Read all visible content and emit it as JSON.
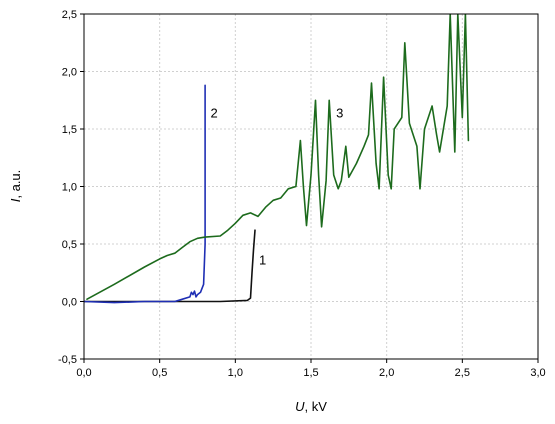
{
  "chart_data": {
    "type": "line",
    "xlabel": {
      "symbol": "U",
      "unit": ", kV"
    },
    "ylabel": {
      "symbol": "I",
      "unit": ", a.u."
    },
    "xlim": [
      0.0,
      3.0
    ],
    "ylim": [
      -0.5,
      2.5
    ],
    "xticks": [
      "0,0",
      "0,5",
      "1,0",
      "1,5",
      "2,0",
      "2,5",
      "3,0"
    ],
    "yticks": [
      "-0,5",
      "0,0",
      "0,5",
      "1,0",
      "1,5",
      "2,0",
      "2,5"
    ],
    "grid": true,
    "colors": {
      "curve_1": "#111111",
      "curve_2": "#1f2fb4",
      "curve_3": "#1d6b1d",
      "grid": "#d0d0d0"
    },
    "annotations": [
      {
        "text": "1",
        "x": 1.18,
        "y": 0.32
      },
      {
        "text": "2",
        "x": 0.86,
        "y": 1.6
      },
      {
        "text": "3",
        "x": 1.69,
        "y": 1.6
      }
    ],
    "series": [
      {
        "color": "#111111",
        "points": [
          [
            0.0,
            0.0
          ],
          [
            0.3,
            0.0
          ],
          [
            0.6,
            0.0
          ],
          [
            0.9,
            0.0
          ],
          [
            1.08,
            0.01
          ],
          [
            1.1,
            0.03
          ],
          [
            1.11,
            0.25
          ],
          [
            1.12,
            0.45
          ],
          [
            1.13,
            0.62
          ]
        ]
      },
      {
        "color": "#1f2fb4",
        "points": [
          [
            0.0,
            0.0
          ],
          [
            0.2,
            -0.01
          ],
          [
            0.4,
            0.0
          ],
          [
            0.6,
            0.0
          ],
          [
            0.65,
            0.02
          ],
          [
            0.7,
            0.04
          ],
          [
            0.71,
            0.08
          ],
          [
            0.72,
            0.06
          ],
          [
            0.73,
            0.09
          ],
          [
            0.74,
            0.04
          ],
          [
            0.75,
            0.06
          ],
          [
            0.77,
            0.08
          ],
          [
            0.79,
            0.15
          ],
          [
            0.8,
            0.5
          ],
          [
            0.8,
            1.0
          ],
          [
            0.8,
            1.88
          ]
        ]
      },
      {
        "color": "#1d6b1d",
        "points": [
          [
            0.02,
            0.02
          ],
          [
            0.2,
            0.15
          ],
          [
            0.4,
            0.3
          ],
          [
            0.5,
            0.37
          ],
          [
            0.55,
            0.4
          ],
          [
            0.6,
            0.42
          ],
          [
            0.65,
            0.47
          ],
          [
            0.7,
            0.52
          ],
          [
            0.75,
            0.55
          ],
          [
            0.8,
            0.56
          ],
          [
            0.9,
            0.57
          ],
          [
            0.95,
            0.62
          ],
          [
            1.0,
            0.68
          ],
          [
            1.05,
            0.75
          ],
          [
            1.1,
            0.77
          ],
          [
            1.15,
            0.74
          ],
          [
            1.2,
            0.82
          ],
          [
            1.25,
            0.88
          ],
          [
            1.3,
            0.9
          ],
          [
            1.35,
            0.98
          ],
          [
            1.4,
            1.0
          ],
          [
            1.43,
            1.4
          ],
          [
            1.45,
            1.0
          ],
          [
            1.47,
            0.66
          ],
          [
            1.5,
            1.1
          ],
          [
            1.53,
            1.75
          ],
          [
            1.55,
            1.1
          ],
          [
            1.57,
            0.65
          ],
          [
            1.6,
            1.05
          ],
          [
            1.62,
            1.75
          ],
          [
            1.65,
            1.1
          ],
          [
            1.68,
            0.98
          ],
          [
            1.7,
            1.05
          ],
          [
            1.73,
            1.35
          ],
          [
            1.75,
            1.08
          ],
          [
            1.8,
            1.2
          ],
          [
            1.85,
            1.35
          ],
          [
            1.88,
            1.45
          ],
          [
            1.9,
            1.9
          ],
          [
            1.93,
            1.2
          ],
          [
            1.95,
            0.98
          ],
          [
            1.98,
            1.95
          ],
          [
            2.01,
            1.1
          ],
          [
            2.03,
            0.98
          ],
          [
            2.05,
            1.5
          ],
          [
            2.1,
            1.6
          ],
          [
            2.12,
            2.25
          ],
          [
            2.15,
            1.55
          ],
          [
            2.2,
            1.35
          ],
          [
            2.22,
            0.98
          ],
          [
            2.25,
            1.5
          ],
          [
            2.3,
            1.7
          ],
          [
            2.33,
            1.45
          ],
          [
            2.35,
            1.3
          ],
          [
            2.4,
            1.7
          ],
          [
            2.42,
            2.5
          ],
          [
            2.45,
            1.3
          ],
          [
            2.47,
            2.5
          ],
          [
            2.5,
            1.6
          ],
          [
            2.52,
            2.5
          ],
          [
            2.54,
            1.4
          ]
        ]
      }
    ]
  }
}
